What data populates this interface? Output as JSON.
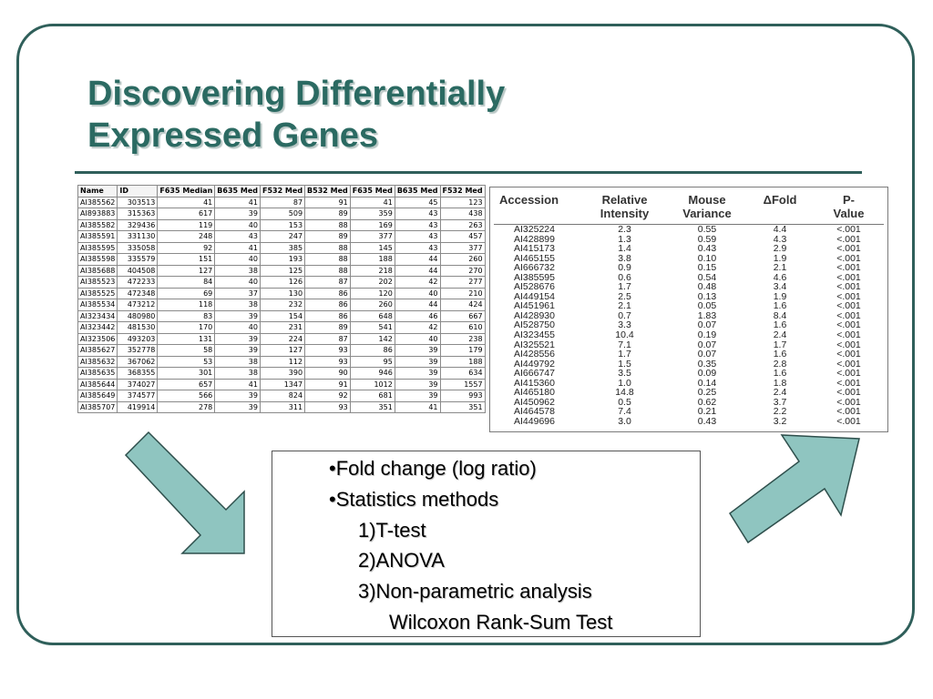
{
  "slide": {
    "title_line1": "Discovering Differentially",
    "title_line2": "Expressed Genes"
  },
  "left_table": {
    "headers": [
      "Name",
      "ID",
      "F635 Median",
      "B635 Med",
      "F532 Med",
      "B532 Med",
      "F635 Med",
      "B635 Med",
      "F532 Med"
    ],
    "rows": [
      [
        "AI385562",
        "303513",
        "41",
        "41",
        "87",
        "91",
        "41",
        "45",
        "123"
      ],
      [
        "AI893883",
        "315363",
        "617",
        "39",
        "509",
        "89",
        "359",
        "43",
        "438"
      ],
      [
        "AI385582",
        "329436",
        "119",
        "40",
        "153",
        "88",
        "169",
        "43",
        "263"
      ],
      [
        "AI385591",
        "331130",
        "248",
        "43",
        "247",
        "89",
        "377",
        "43",
        "457"
      ],
      [
        "AI385595",
        "335058",
        "92",
        "41",
        "385",
        "88",
        "145",
        "43",
        "377"
      ],
      [
        "AI385598",
        "335579",
        "151",
        "40",
        "193",
        "88",
        "188",
        "44",
        "260"
      ],
      [
        "AI385688",
        "404508",
        "127",
        "38",
        "125",
        "88",
        "218",
        "44",
        "270"
      ],
      [
        "AI385523",
        "472233",
        "84",
        "40",
        "126",
        "87",
        "202",
        "42",
        "277"
      ],
      [
        "AI385525",
        "472348",
        "69",
        "37",
        "130",
        "86",
        "120",
        "40",
        "210"
      ],
      [
        "AI385534",
        "473212",
        "118",
        "38",
        "232",
        "86",
        "260",
        "44",
        "424"
      ],
      [
        "AI323434",
        "480980",
        "83",
        "39",
        "154",
        "86",
        "648",
        "46",
        "667"
      ],
      [
        "AI323442",
        "481530",
        "170",
        "40",
        "231",
        "89",
        "541",
        "42",
        "610"
      ],
      [
        "AI323506",
        "493203",
        "131",
        "39",
        "224",
        "87",
        "142",
        "40",
        "238"
      ],
      [
        "AI385627",
        "352778",
        "58",
        "39",
        "127",
        "93",
        "86",
        "39",
        "179"
      ],
      [
        "AI385632",
        "367062",
        "53",
        "38",
        "112",
        "93",
        "95",
        "39",
        "188"
      ],
      [
        "AI385635",
        "368355",
        "301",
        "38",
        "390",
        "90",
        "946",
        "39",
        "634"
      ],
      [
        "AI385644",
        "374027",
        "657",
        "41",
        "1347",
        "91",
        "1012",
        "39",
        "1557"
      ],
      [
        "AI385649",
        "374577",
        "566",
        "39",
        "824",
        "92",
        "681",
        "39",
        "993"
      ],
      [
        "AI385707",
        "419914",
        "278",
        "39",
        "311",
        "93",
        "351",
        "41",
        "351"
      ]
    ]
  },
  "right_table": {
    "headers": {
      "accession": "Accession",
      "rel1": "Relative",
      "rel2": "Intensity",
      "mouse1": "Mouse",
      "mouse2": "Variance",
      "fold": "ΔFold",
      "p1": "P-",
      "p2": "Value"
    },
    "rows": [
      [
        "AI325224",
        "2.3",
        "0.55",
        "4.4",
        "<.001"
      ],
      [
        "AI428899",
        "1.3",
        "0.59",
        "4.3",
        "<.001"
      ],
      [
        "AI415173",
        "1.4",
        "0.43",
        "2.9",
        "<.001"
      ],
      [
        "AI465155",
        "3.8",
        "0.10",
        "1.9",
        "<.001"
      ],
      [
        "AI666732",
        "0.9",
        "0.15",
        "2.1",
        "<.001"
      ],
      [
        "AI385595",
        "0.6",
        "0.54",
        "4.6",
        "<.001"
      ],
      [
        "AI528676",
        "1.7",
        "0.48",
        "3.4",
        "<.001"
      ],
      [
        "AI449154",
        "2.5",
        "0.13",
        "1.9",
        "<.001"
      ],
      [
        "AI451961",
        "2.1",
        "0.05",
        "1.6",
        "<.001"
      ],
      [
        "AI428930",
        "0.7",
        "1.83",
        "8.4",
        "<.001"
      ],
      [
        "AI528750",
        "3.3",
        "0.07",
        "1.6",
        "<.001"
      ],
      [
        "AI323455",
        "10.4",
        "0.19",
        "2.4",
        "<.001"
      ],
      [
        "AI325521",
        "7.1",
        "0.07",
        "1.7",
        "<.001"
      ],
      [
        "AI428556",
        "1.7",
        "0.07",
        "1.6",
        "<.001"
      ],
      [
        "AI449792",
        "1.5",
        "0.35",
        "2.8",
        "<.001"
      ],
      [
        "AI666747",
        "3.5",
        "0.09",
        "1.6",
        "<.001"
      ],
      [
        "AI415360",
        "1.0",
        "0.14",
        "1.8",
        "<.001"
      ],
      [
        "AI465180",
        "14.8",
        "0.25",
        "2.4",
        "<.001"
      ],
      [
        "AI450962",
        "0.5",
        "0.62",
        "3.7",
        "<.001"
      ],
      [
        "AI464578",
        "7.4",
        "0.21",
        "2.2",
        "<.001"
      ],
      [
        "AI449696",
        "3.0",
        "0.43",
        "3.2",
        "<.001"
      ]
    ]
  },
  "bullets": {
    "item1": "•Fold change (log ratio)",
    "item2": "•Statistics methods",
    "sub1": "1)T-test",
    "sub2": "2)ANOVA",
    "sub3": "3)Non-parametric analysis",
    "sub3_detail": "Wilcoxon Rank-Sum Test"
  },
  "colors": {
    "title": "#2b6a62",
    "frame": "#2f5f5a",
    "arrow_fill": "#8fc5c0",
    "arrow_stroke": "#2e4f4c"
  },
  "icons": {
    "left_arrow": "arrow-down-right-icon",
    "right_arrow": "arrow-up-right-icon"
  }
}
